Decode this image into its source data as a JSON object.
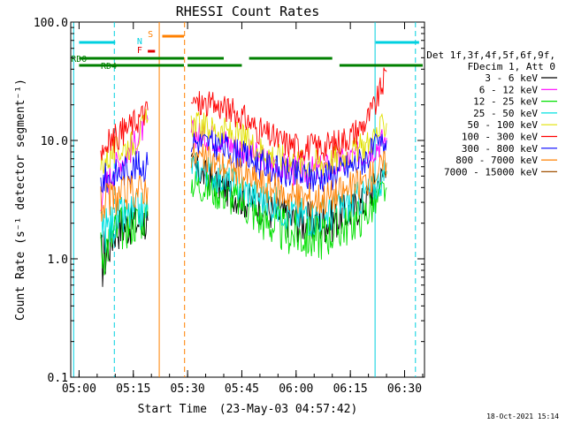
{
  "chart_data": {
    "type": "line",
    "title": "RHESSI Count Rates",
    "xlabel_prefix": "Start Time",
    "xlabel_date": "(23-May-03 04:57:42)",
    "ylabel": "Count Rate (s⁻¹ detector segment⁻¹)",
    "y_scale": "log",
    "ylim": [
      0.1,
      100
    ],
    "xlim": [
      "04:57:42",
      "06:35:30"
    ],
    "x_tick_labels": [
      "05:00",
      "05:15",
      "05:30",
      "05:45",
      "06:00",
      "06:15",
      "06:30"
    ],
    "y_tick_labels": [
      "0.1",
      "1.0",
      "10.0",
      "100.0"
    ],
    "legend_header": [
      "Det 1f,3f,4f,5f,6f,9f,",
      "FDecim 1, Att 0"
    ],
    "legend_position": "right",
    "footer": "18-Oct-2021 15:14",
    "flags": [
      {
        "label": "RD0",
        "color": "#008000"
      },
      {
        "label": "RD4",
        "color": "#008000"
      },
      {
        "label": "N",
        "color": "#00d0e0"
      },
      {
        "label": "F",
        "color": "#e00000"
      },
      {
        "label": "S",
        "color": "#ff8000"
      }
    ],
    "vertical_markers": [
      {
        "time": "04:58:30",
        "style": "solid",
        "color": "#00d0e0"
      },
      {
        "time": "05:09:45",
        "style": "dashed",
        "color": "#00d0e0"
      },
      {
        "time": "05:22:10",
        "style": "solid",
        "color": "#ff8000"
      },
      {
        "time": "05:29:10",
        "style": "dashed",
        "color": "#ff8000"
      },
      {
        "time": "06:21:50",
        "style": "solid",
        "color": "#00d0e0"
      },
      {
        "time": "06:33:00",
        "style": "dashed",
        "color": "#00d0e0"
      }
    ],
    "series": [
      {
        "name": "3 - 6 keV",
        "color": "#000000",
        "values": [
          0.9,
          1.8,
          2.0,
          2.1,
          0,
          0,
          6.0,
          5.0,
          4.0,
          3.2,
          2.8,
          2.4,
          2.1,
          2.0,
          2.1,
          2.5,
          3.0,
          4.2,
          5.5
        ]
      },
      {
        "name": "6 - 12 keV",
        "color": "#ff00ff",
        "values": [
          3.5,
          6.0,
          9.0,
          15.0,
          0,
          0,
          11.5,
          11.0,
          10.0,
          8.5,
          7.0,
          6.0,
          5.5,
          5.4,
          6.0,
          7.0,
          8.0,
          9.0,
          10.5
        ]
      },
      {
        "name": "12 - 25 keV",
        "color": "#00e000",
        "values": [
          1.1,
          1.7,
          2.0,
          2.3,
          0,
          0,
          4.5,
          4.0,
          3.5,
          3.0,
          2.2,
          1.8,
          1.6,
          1.5,
          1.7,
          2.0,
          2.4,
          3.0,
          4.0
        ]
      },
      {
        "name": "25 - 50 keV",
        "color": "#00e0e0",
        "values": [
          1.6,
          2.1,
          2.4,
          2.6,
          0,
          0,
          6.3,
          5.5,
          4.7,
          4.0,
          3.3,
          2.8,
          2.4,
          2.3,
          2.5,
          2.9,
          3.4,
          4.2,
          5.2
        ]
      },
      {
        "name": "50 - 100 keV",
        "color": "#e0e000",
        "values": [
          6.5,
          8.0,
          9.5,
          15.0,
          0,
          0,
          14.0,
          13.0,
          12.0,
          10.5,
          8.5,
          7.2,
          6.5,
          6.3,
          6.8,
          7.8,
          9.0,
          11.0,
          14.0
        ]
      },
      {
        "name": "100 - 300 keV",
        "color": "#ff0000",
        "values": [
          8.5,
          10.5,
          14.0,
          18.0,
          0,
          0,
          21.0,
          20.0,
          19.0,
          16.0,
          12.0,
          10.0,
          9.0,
          8.7,
          9.2,
          11.0,
          14.0,
          20.0,
          38.0
        ]
      },
      {
        "name": "300 - 800 keV",
        "color": "#0000ff",
        "values": [
          4.5,
          5.2,
          6.0,
          6.2,
          0,
          0,
          10.0,
          9.5,
          8.8,
          7.5,
          6.3,
          5.5,
          5.0,
          4.9,
          5.2,
          6.0,
          7.0,
          8.5,
          10.0
        ]
      },
      {
        "name": "800 - 7000 keV",
        "color": "#ff8000",
        "values": [
          2.8,
          3.3,
          3.7,
          4.0,
          0,
          0,
          7.5,
          6.8,
          6.2,
          5.2,
          4.4,
          3.7,
          3.3,
          3.2,
          3.4,
          3.9,
          4.5,
          5.4,
          6.5
        ]
      },
      {
        "name": "7000 - 15000 keV",
        "color": "#a05000",
        "values": [
          0,
          0,
          0,
          0,
          0,
          0,
          0,
          0,
          0,
          0,
          0,
          0,
          0,
          0,
          0,
          0,
          0,
          0,
          0
        ]
      }
    ],
    "x": [
      "05:06",
      "05:10",
      "05:15",
      "05:19",
      "05:24",
      "05:28",
      "05:31",
      "05:35",
      "05:40",
      "05:45",
      "05:50",
      "05:55",
      "06:00",
      "06:05",
      "06:10",
      "06:15",
      "06:19",
      "06:22",
      "06:25"
    ]
  }
}
